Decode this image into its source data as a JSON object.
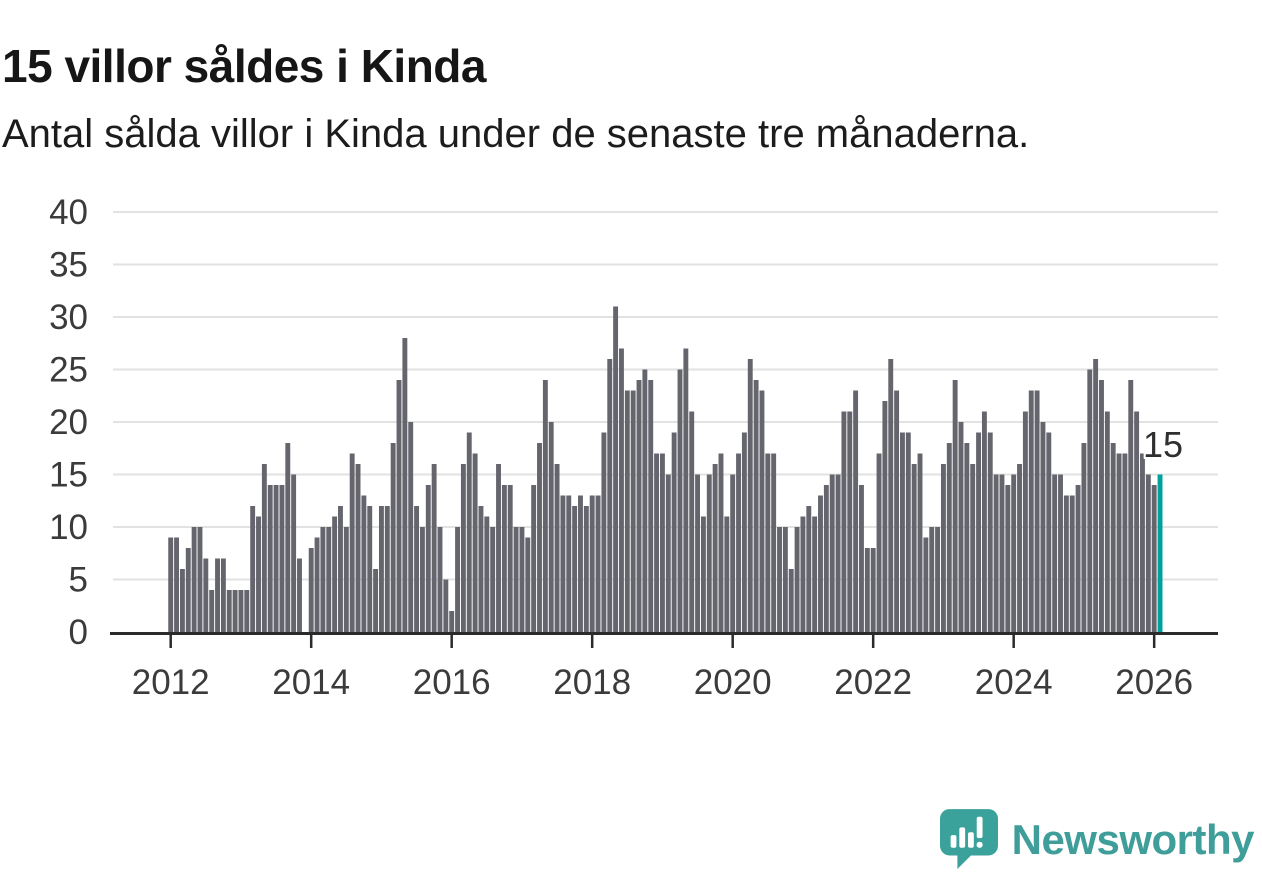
{
  "title": "15 villor såldes i Kinda",
  "subtitle": "Antal sålda villor i Kinda under de senaste tre månaderna.",
  "logo": {
    "text": "Newsworthy"
  },
  "colors": {
    "bar": "#65656d",
    "highlight": "#00a19c",
    "gridline": "#e2e2e2",
    "axis": "#2b2b2b",
    "tick_label": "#3b3b3b",
    "logo_teal": "#3aa29b"
  },
  "chart_data": {
    "type": "bar",
    "title": "15 villor såldes i Kinda",
    "subtitle": "Antal sålda villor i Kinda under de senaste tre månaderna.",
    "unit": "sålda villor per 3-månadersperiod",
    "x_start": "2012-01",
    "x_end": "2026-02",
    "xticks": [
      2012,
      2014,
      2016,
      2018,
      2020,
      2022,
      2024,
      2026
    ],
    "yticks": [
      0,
      5,
      10,
      15,
      20,
      25,
      30,
      35,
      40
    ],
    "ylim": [
      0,
      40
    ],
    "xlabel": "",
    "ylabel": "",
    "grid": true,
    "legend": false,
    "highlight_label": "15",
    "highlight_index": 169,
    "values": [
      9,
      9,
      6,
      8,
      10,
      10,
      7,
      4,
      7,
      7,
      4,
      4,
      4,
      4,
      12,
      11,
      16,
      14,
      14,
      14,
      18,
      15,
      7,
      0,
      8,
      9,
      10,
      10,
      11,
      12,
      10,
      17,
      16,
      13,
      12,
      6,
      12,
      12,
      18,
      24,
      28,
      20,
      12,
      10,
      14,
      16,
      10,
      5,
      2,
      10,
      16,
      19,
      17,
      12,
      11,
      10,
      16,
      14,
      14,
      10,
      10,
      9,
      14,
      18,
      24,
      20,
      16,
      13,
      13,
      12,
      13,
      12,
      13,
      13,
      19,
      26,
      31,
      27,
      23,
      23,
      24,
      25,
      24,
      17,
      17,
      15,
      19,
      25,
      27,
      21,
      15,
      11,
      15,
      16,
      17,
      11,
      15,
      17,
      19,
      26,
      24,
      23,
      17,
      17,
      10,
      10,
      6,
      10,
      11,
      12,
      11,
      13,
      14,
      15,
      15,
      21,
      21,
      23,
      14,
      8,
      8,
      17,
      22,
      26,
      23,
      19,
      19,
      16,
      17,
      9,
      10,
      10,
      16,
      18,
      24,
      20,
      18,
      16,
      19,
      21,
      19,
      15,
      15,
      14,
      15,
      16,
      21,
      23,
      23,
      20,
      19,
      15,
      15,
      13,
      13,
      14,
      18,
      25,
      26,
      24,
      21,
      18,
      17,
      17,
      24,
      21,
      17,
      15,
      14,
      15
    ]
  }
}
